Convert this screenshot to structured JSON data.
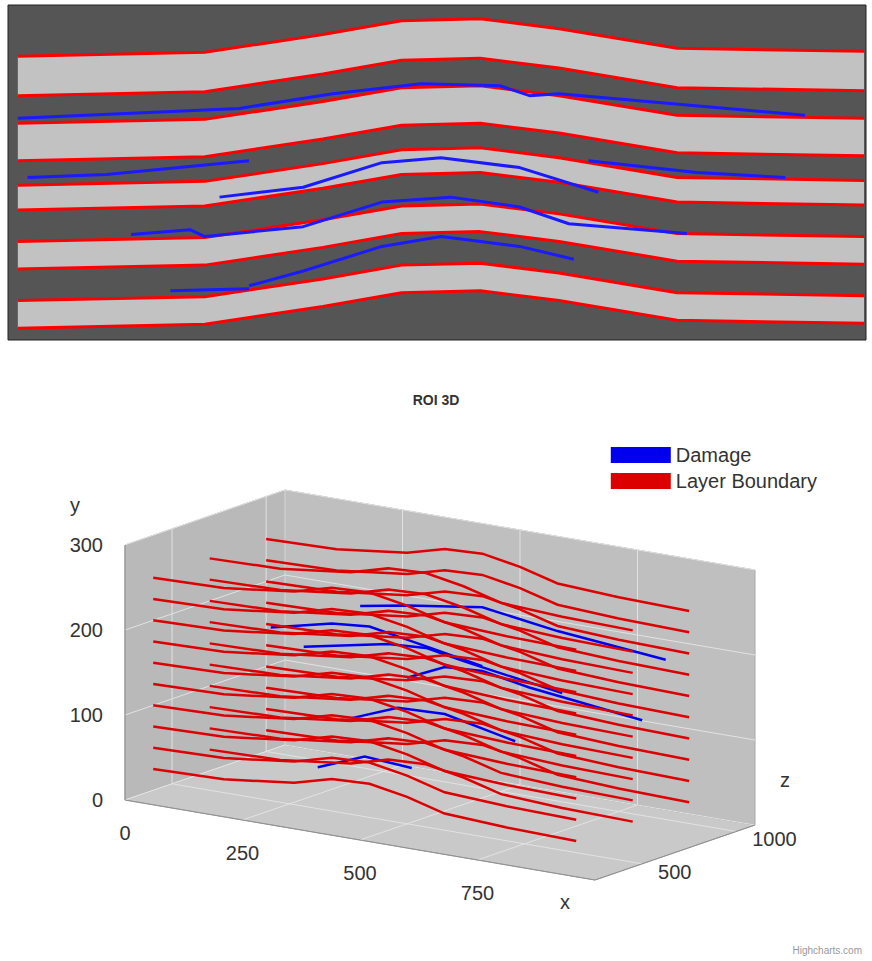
{
  "chart_data": [
    {
      "type": "line",
      "xlim": [
        0,
        872
      ],
      "ylim": [
        0,
        340
      ],
      "tick_labels": false,
      "x": [
        10,
        200,
        320,
        400,
        480,
        560,
        680,
        870
      ],
      "series": [
        {
          "name": "Layer Boundary",
          "color": "#ff0000",
          "values": [
            52,
            48,
            30,
            16,
            14,
            24,
            44,
            47
          ]
        },
        {
          "name": "Layer Boundary",
          "color": "#ff0000",
          "values": [
            92,
            88,
            70,
            56,
            54,
            64,
            84,
            87
          ]
        },
        {
          "name": "Layer Boundary",
          "color": "#ff0000",
          "values": [
            120,
            116,
            98,
            84,
            82,
            92,
            112,
            115
          ]
        },
        {
          "name": "Layer Boundary",
          "color": "#ff0000",
          "values": [
            158,
            154,
            136,
            122,
            120,
            130,
            150,
            153
          ]
        },
        {
          "name": "Layer Boundary",
          "color": "#ff0000",
          "values": [
            183,
            179,
            161,
            147,
            145,
            155,
            175,
            178
          ]
        },
        {
          "name": "Layer Boundary",
          "color": "#ff0000",
          "values": [
            208,
            204,
            186,
            172,
            170,
            180,
            200,
            203
          ]
        },
        {
          "name": "Layer Boundary",
          "color": "#ff0000",
          "values": [
            240,
            236,
            218,
            204,
            202,
            212,
            232,
            235
          ]
        },
        {
          "name": "Layer Boundary",
          "color": "#ff0000",
          "values": [
            268,
            264,
            246,
            232,
            230,
            240,
            260,
            263
          ]
        },
        {
          "name": "Layer Boundary",
          "color": "#ff0000",
          "values": [
            300,
            296,
            278,
            264,
            262,
            272,
            292,
            295
          ]
        },
        {
          "name": "Layer Boundary",
          "color": "#ff0000",
          "values": [
            328,
            324,
            306,
            292,
            290,
            300,
            320,
            323
          ]
        },
        {
          "name": "Damage",
          "color": "#1a1aff",
          "x": [
            10,
            235,
            330,
            420,
            500,
            530,
            560,
            810
          ],
          "values": [
            115,
            105,
            90,
            80,
            82,
            92,
            90,
            112
          ]
        },
        {
          "name": "Damage",
          "color": "#1a1aff",
          "x": [
            20,
            100,
            245
          ],
          "values": [
            175,
            172,
            158
          ]
        },
        {
          "name": "Damage",
          "color": "#1a1aff",
          "x": [
            215,
            300,
            380,
            440,
            520,
            600
          ],
          "values": [
            195,
            185,
            160,
            155,
            165,
            190
          ]
        },
        {
          "name": "Damage",
          "color": "#1a1aff",
          "x": [
            590,
            700,
            790
          ],
          "values": [
            158,
            170,
            175
          ]
        },
        {
          "name": "Damage",
          "color": "#1a1aff",
          "x": [
            125,
            185,
            200,
            300,
            380,
            450,
            520,
            570,
            690
          ],
          "values": [
            233,
            228,
            235,
            225,
            200,
            195,
            205,
            222,
            232
          ]
        },
        {
          "name": "Damage",
          "color": "#1a1aff",
          "x": [
            245,
            300,
            380,
            440,
            520,
            575
          ],
          "values": [
            285,
            270,
            245,
            235,
            245,
            258
          ]
        },
        {
          "name": "Damage",
          "color": "#1a1aff",
          "x": [
            165,
            245
          ],
          "values": [
            290,
            288
          ]
        }
      ]
    },
    {
      "type": "line3d",
      "title": "ROI 3D",
      "xlabel": "x",
      "ylabel": "y",
      "zlabel": "z",
      "xlim": [
        0,
        1000
      ],
      "xticks": [
        0,
        250,
        500,
        750
      ],
      "ylim": [
        0,
        300
      ],
      "yticks": [
        0,
        100,
        200,
        300
      ],
      "zlim": [
        250,
        1100
      ],
      "zticks": [
        500,
        1000
      ],
      "legend": "top-right",
      "credits": "Highcharts.com",
      "x": [
        0,
        150,
        300,
        380,
        460,
        540,
        620,
        750,
        900
      ],
      "series": [
        {
          "name": "Damage",
          "color": "#0000ee",
          "z": 400,
          "x": [
            250,
            380,
            460,
            540,
            700
          ],
          "values": [
            215,
            232,
            236,
            228,
            212
          ]
        },
        {
          "name": "Damage",
          "color": "#0000ee",
          "z": 700,
          "x": [
            200,
            380,
            460,
            540,
            750
          ],
          "values": [
            165,
            185,
            188,
            180,
            162
          ]
        },
        {
          "name": "Damage",
          "color": "#0000ee",
          "z": 1000,
          "x": [
            300,
            380,
            460,
            560,
            800
          ],
          "values": [
            115,
            135,
            138,
            128,
            112
          ]
        },
        {
          "name": "Damage",
          "color": "#0000ee",
          "z": 700,
          "x": [
            300,
            400,
            500,
            650
          ],
          "values": [
            90,
            112,
            114,
            96
          ]
        },
        {
          "name": "Damage",
          "color": "#0000ee",
          "z": 400,
          "x": [
            350,
            450,
            550
          ],
          "values": [
            60,
            82,
            78
          ]
        },
        {
          "name": "Damage",
          "color": "#0000ee",
          "z": 1000,
          "x": [
            200,
            300,
            460,
            620,
            850
          ],
          "values": [
            190,
            200,
            213,
            200,
            188
          ]
        },
        {
          "name": "Layer Boundary",
          "color": "#dd0000",
          "z": 1000,
          "values": [
            25,
            27,
            37,
            49,
            51,
            43,
            31,
            27,
            25
          ]
        },
        {
          "name": "Layer Boundary",
          "color": "#dd0000",
          "z": 1000,
          "values": [
            50,
            52,
            62,
            74,
            76,
            68,
            56,
            52,
            50
          ]
        },
        {
          "name": "Layer Boundary",
          "color": "#dd0000",
          "z": 1000,
          "values": [
            75,
            77,
            87,
            99,
            101,
            93,
            81,
            77,
            75
          ]
        },
        {
          "name": "Layer Boundary",
          "color": "#dd0000",
          "z": 1000,
          "values": [
            100,
            102,
            112,
            124,
            126,
            118,
            106,
            102,
            100
          ]
        },
        {
          "name": "Layer Boundary",
          "color": "#dd0000",
          "z": 1000,
          "values": [
            125,
            127,
            137,
            149,
            151,
            143,
            131,
            127,
            125
          ]
        },
        {
          "name": "Layer Boundary",
          "color": "#dd0000",
          "z": 1000,
          "values": [
            150,
            152,
            162,
            174,
            176,
            168,
            156,
            152,
            150
          ]
        },
        {
          "name": "Layer Boundary",
          "color": "#dd0000",
          "z": 1000,
          "values": [
            175,
            177,
            187,
            199,
            201,
            193,
            181,
            177,
            175
          ]
        },
        {
          "name": "Layer Boundary",
          "color": "#dd0000",
          "z": 1000,
          "values": [
            200,
            202,
            212,
            224,
            226,
            218,
            206,
            202,
            200
          ]
        },
        {
          "name": "Layer Boundary",
          "color": "#dd0000",
          "z": 1000,
          "values": [
            225,
            227,
            237,
            249,
            251,
            243,
            231,
            227,
            225
          ]
        },
        {
          "name": "Layer Boundary",
          "color": "#dd0000",
          "z": 1000,
          "values": [
            250,
            252,
            262,
            274,
            276,
            268,
            256,
            252,
            250
          ]
        },
        {
          "name": "Layer Boundary",
          "color": "#dd0000",
          "z": 700,
          "values": [
            25,
            27,
            37,
            49,
            51,
            43,
            31,
            27,
            25
          ]
        },
        {
          "name": "Layer Boundary",
          "color": "#dd0000",
          "z": 700,
          "values": [
            50,
            52,
            62,
            74,
            76,
            68,
            56,
            52,
            50
          ]
        },
        {
          "name": "Layer Boundary",
          "color": "#dd0000",
          "z": 700,
          "values": [
            75,
            77,
            87,
            99,
            101,
            93,
            81,
            77,
            75
          ]
        },
        {
          "name": "Layer Boundary",
          "color": "#dd0000",
          "z": 700,
          "values": [
            100,
            102,
            112,
            124,
            126,
            118,
            106,
            102,
            100
          ]
        },
        {
          "name": "Layer Boundary",
          "color": "#dd0000",
          "z": 700,
          "values": [
            125,
            127,
            137,
            149,
            151,
            143,
            131,
            127,
            125
          ]
        },
        {
          "name": "Layer Boundary",
          "color": "#dd0000",
          "z": 700,
          "values": [
            150,
            152,
            162,
            174,
            176,
            168,
            156,
            152,
            150
          ]
        },
        {
          "name": "Layer Boundary",
          "color": "#dd0000",
          "z": 700,
          "values": [
            175,
            177,
            187,
            199,
            201,
            193,
            181,
            177,
            175
          ]
        },
        {
          "name": "Layer Boundary",
          "color": "#dd0000",
          "z": 700,
          "values": [
            200,
            202,
            212,
            224,
            226,
            218,
            206,
            202,
            200
          ]
        },
        {
          "name": "Layer Boundary",
          "color": "#dd0000",
          "z": 700,
          "values": [
            225,
            227,
            237,
            249,
            251,
            243,
            231,
            227,
            225
          ]
        },
        {
          "name": "Layer Boundary",
          "color": "#dd0000",
          "z": 700,
          "values": [
            250,
            252,
            262,
            274,
            276,
            268,
            256,
            252,
            250
          ]
        },
        {
          "name": "Layer Boundary",
          "color": "#dd0000",
          "z": 400,
          "values": [
            25,
            27,
            37,
            49,
            51,
            43,
            31,
            27,
            25
          ]
        },
        {
          "name": "Layer Boundary",
          "color": "#dd0000",
          "z": 400,
          "values": [
            50,
            52,
            62,
            74,
            76,
            68,
            56,
            52,
            50
          ]
        },
        {
          "name": "Layer Boundary",
          "color": "#dd0000",
          "z": 400,
          "values": [
            75,
            77,
            87,
            99,
            101,
            93,
            81,
            77,
            75
          ]
        },
        {
          "name": "Layer Boundary",
          "color": "#dd0000",
          "z": 400,
          "values": [
            100,
            102,
            112,
            124,
            126,
            118,
            106,
            102,
            100
          ]
        },
        {
          "name": "Layer Boundary",
          "color": "#dd0000",
          "z": 400,
          "values": [
            125,
            127,
            137,
            149,
            151,
            143,
            131,
            127,
            125
          ]
        },
        {
          "name": "Layer Boundary",
          "color": "#dd0000",
          "z": 400,
          "values": [
            150,
            152,
            162,
            174,
            176,
            168,
            156,
            152,
            150
          ]
        },
        {
          "name": "Layer Boundary",
          "color": "#dd0000",
          "z": 400,
          "values": [
            175,
            177,
            187,
            199,
            201,
            193,
            181,
            177,
            175
          ]
        },
        {
          "name": "Layer Boundary",
          "color": "#dd0000",
          "z": 400,
          "values": [
            200,
            202,
            212,
            224,
            226,
            218,
            206,
            202,
            200
          ]
        },
        {
          "name": "Layer Boundary",
          "color": "#dd0000",
          "z": 400,
          "values": [
            225,
            227,
            237,
            249,
            251,
            243,
            231,
            227,
            225
          ]
        },
        {
          "name": "Layer Boundary",
          "color": "#dd0000",
          "z": 400,
          "values": [
            250,
            252,
            262,
            274,
            276,
            268,
            256,
            252,
            250
          ]
        }
      ]
    }
  ]
}
